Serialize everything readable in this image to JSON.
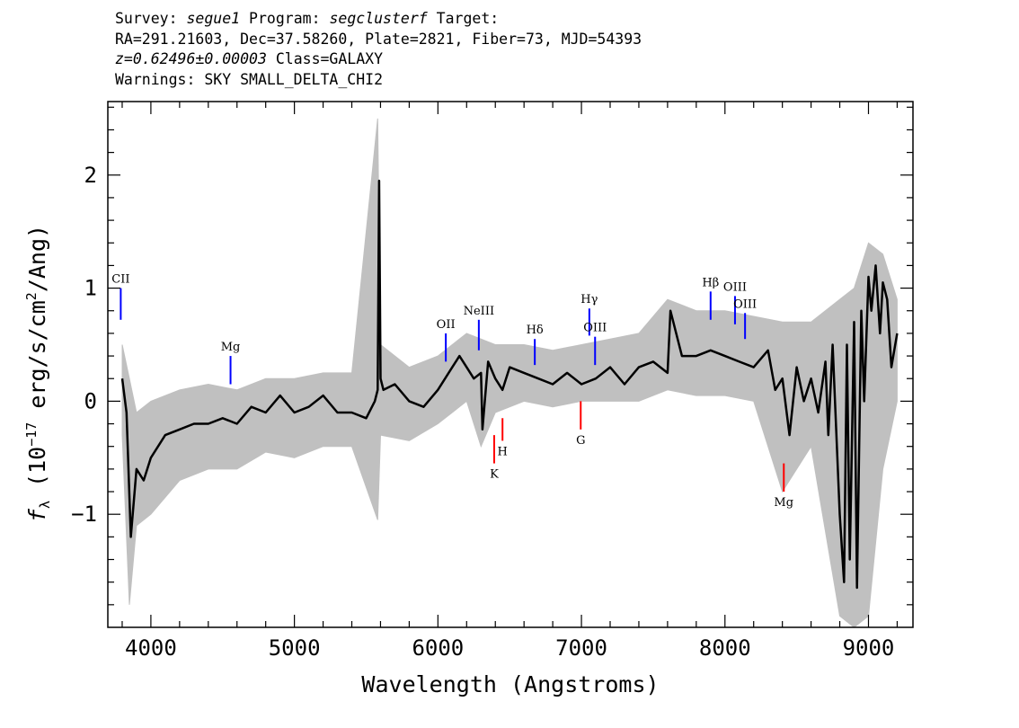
{
  "header": {
    "survey_label": "Survey:",
    "survey": "segue1",
    "program_label": "Program:",
    "program": "segclusterf",
    "target_label": "Target:",
    "line2": "RA=291.21603, Dec=37.58260, Plate=2821, Fiber=73, MJD=54393",
    "redshift": "z=0.62496±0.00003",
    "class": "Class=GALAXY",
    "warnings": "Warnings: SKY SMALL_DELTA_CHI2"
  },
  "chart_data": {
    "type": "line",
    "xlabel": "Wavelength (Angstroms)",
    "ylabel_prefix": "f",
    "ylabel_sub": "λ",
    "ylabel_paren_open": "(10",
    "ylabel_exp": "−17",
    "ylabel_units": "erg/s/cm",
    "ylabel_sq": "2",
    "ylabel_tail": "/Ang)",
    "xlim": [
      3700,
      9310
    ],
    "ylim": [
      -2.0,
      2.65
    ],
    "xticks": [
      4000,
      5000,
      6000,
      7000,
      8000,
      9000
    ],
    "xtick_labels": [
      "4000",
      "5000",
      "6000",
      "7000",
      "8000",
      "9000"
    ],
    "yticks": [
      -1,
      0,
      1,
      2
    ],
    "ytick_labels": [
      "−1",
      "0",
      "1",
      "2"
    ],
    "x_minor_step": 200,
    "y_minor_step": 0.2,
    "series": [
      {
        "color": "#000000",
        "x": [
          3800,
          3830,
          3860,
          3900,
          3950,
          4000,
          4100,
          4200,
          4300,
          4400,
          4500,
          4600,
          4700,
          4800,
          4900,
          5000,
          5100,
          5200,
          5300,
          5400,
          5500,
          5560,
          5580,
          5590,
          5600,
          5620,
          5700,
          5800,
          5900,
          6000,
          6100,
          6150,
          6200,
          6250,
          6300,
          6310,
          6350,
          6400,
          6450,
          6500,
          6600,
          6700,
          6800,
          6900,
          7000,
          7100,
          7200,
          7300,
          7400,
          7500,
          7600,
          7620,
          7700,
          7800,
          7900,
          8000,
          8100,
          8200,
          8300,
          8350,
          8400,
          8450,
          8500,
          8550,
          8600,
          8650,
          8700,
          8720,
          8750,
          8800,
          8830,
          8850,
          8870,
          8900,
          8920,
          8950,
          8970,
          9000,
          9020,
          9050,
          9080,
          9100,
          9130,
          9160,
          9200
        ],
        "y": [
          0.2,
          -0.1,
          -1.2,
          -0.6,
          -0.7,
          -0.5,
          -0.3,
          -0.25,
          -0.2,
          -0.2,
          -0.15,
          -0.2,
          -0.05,
          -0.1,
          0.05,
          -0.1,
          -0.05,
          0.05,
          -0.1,
          -0.1,
          -0.15,
          0.0,
          0.1,
          1.95,
          0.2,
          0.1,
          0.15,
          0.0,
          -0.05,
          0.1,
          0.3,
          0.4,
          0.3,
          0.2,
          0.25,
          -0.25,
          0.35,
          0.2,
          0.1,
          0.3,
          0.25,
          0.2,
          0.15,
          0.25,
          0.15,
          0.2,
          0.3,
          0.15,
          0.3,
          0.35,
          0.25,
          0.8,
          0.4,
          0.4,
          0.45,
          0.4,
          0.35,
          0.3,
          0.45,
          0.1,
          0.2,
          -0.3,
          0.3,
          0.0,
          0.2,
          -0.1,
          0.35,
          -0.3,
          0.5,
          -1.0,
          -1.6,
          0.5,
          -1.4,
          0.7,
          -1.65,
          0.8,
          0.0,
          1.1,
          0.8,
          1.2,
          0.6,
          1.05,
          0.9,
          0.3,
          0.6
        ]
      },
      {
        "color": "#c0c0c0",
        "x": [
          3800,
          3850,
          3900,
          4000,
          4200,
          4400,
          4600,
          4800,
          5000,
          5200,
          5400,
          5580,
          5600,
          5800,
          6000,
          6200,
          6300,
          6400,
          6600,
          6800,
          7000,
          7200,
          7400,
          7600,
          7800,
          8000,
          8200,
          8400,
          8600,
          8800,
          8900,
          9000,
          9100,
          9200
        ],
        "y_upper": [
          0.5,
          0.2,
          -0.1,
          0.0,
          0.1,
          0.15,
          0.1,
          0.2,
          0.2,
          0.25,
          0.25,
          2.5,
          0.5,
          0.3,
          0.4,
          0.6,
          0.55,
          0.5,
          0.5,
          0.45,
          0.5,
          0.55,
          0.6,
          0.9,
          0.8,
          0.8,
          0.75,
          0.7,
          0.7,
          0.9,
          1.0,
          1.4,
          1.3,
          0.9
        ],
        "y_lower": [
          -0.3,
          -1.8,
          -1.1,
          -1.0,
          -0.7,
          -0.6,
          -0.6,
          -0.45,
          -0.5,
          -0.4,
          -0.4,
          -1.05,
          -0.3,
          -0.35,
          -0.2,
          0.0,
          -0.4,
          -0.1,
          0.0,
          -0.05,
          0.0,
          0.0,
          0.0,
          0.1,
          0.05,
          0.05,
          0.0,
          -0.8,
          -0.4,
          -1.9,
          -2.0,
          -1.9,
          -0.6,
          0.0
        ]
      }
    ],
    "emission_lines": [
      {
        "label": "CII",
        "x": 3790,
        "y_bottom": 0.72,
        "y_top": 1.0,
        "color": "#0000ff"
      },
      {
        "label": "Mg",
        "x": 4555,
        "y_bottom": 0.15,
        "y_top": 0.4,
        "color": "#0000ff"
      },
      {
        "label": "OII",
        "x": 6055,
        "y_bottom": 0.35,
        "y_top": 0.6,
        "color": "#0000ff"
      },
      {
        "label": "NeIII",
        "x": 6285,
        "y_bottom": 0.45,
        "y_top": 0.72,
        "color": "#0000ff"
      },
      {
        "label": "Hδ",
        "x": 6675,
        "y_bottom": 0.32,
        "y_top": 0.55,
        "color": "#0000ff"
      },
      {
        "label": "Hγ",
        "x": 7055,
        "y_bottom": 0.58,
        "y_top": 0.82,
        "color": "#0000ff"
      },
      {
        "label": "OIII",
        "x": 7095,
        "y_bottom": 0.32,
        "y_top": 0.57,
        "color": "#0000ff"
      },
      {
        "label": "Hβ",
        "x": 7900,
        "y_bottom": 0.72,
        "y_top": 0.97,
        "color": "#0000ff"
      },
      {
        "label": "OIII",
        "x": 8070,
        "y_bottom": 0.68,
        "y_top": 0.93,
        "color": "#0000ff"
      },
      {
        "label": "OIII",
        "x": 8140,
        "y_bottom": 0.55,
        "y_top": 0.78,
        "color": "#0000ff"
      }
    ],
    "absorption_lines": [
      {
        "label": "K",
        "x": 6392,
        "y_top": -0.3,
        "y_bottom": -0.55,
        "color": "#ff0000"
      },
      {
        "label": "H",
        "x": 6450,
        "y_top": -0.15,
        "y_bottom": -0.35,
        "color": "#ff0000"
      },
      {
        "label": "G",
        "x": 6995,
        "y_top": 0.0,
        "y_bottom": -0.25,
        "color": "#ff0000"
      },
      {
        "label": "Mg",
        "x": 8410,
        "y_top": -0.55,
        "y_bottom": -0.8,
        "color": "#ff0000"
      }
    ]
  }
}
